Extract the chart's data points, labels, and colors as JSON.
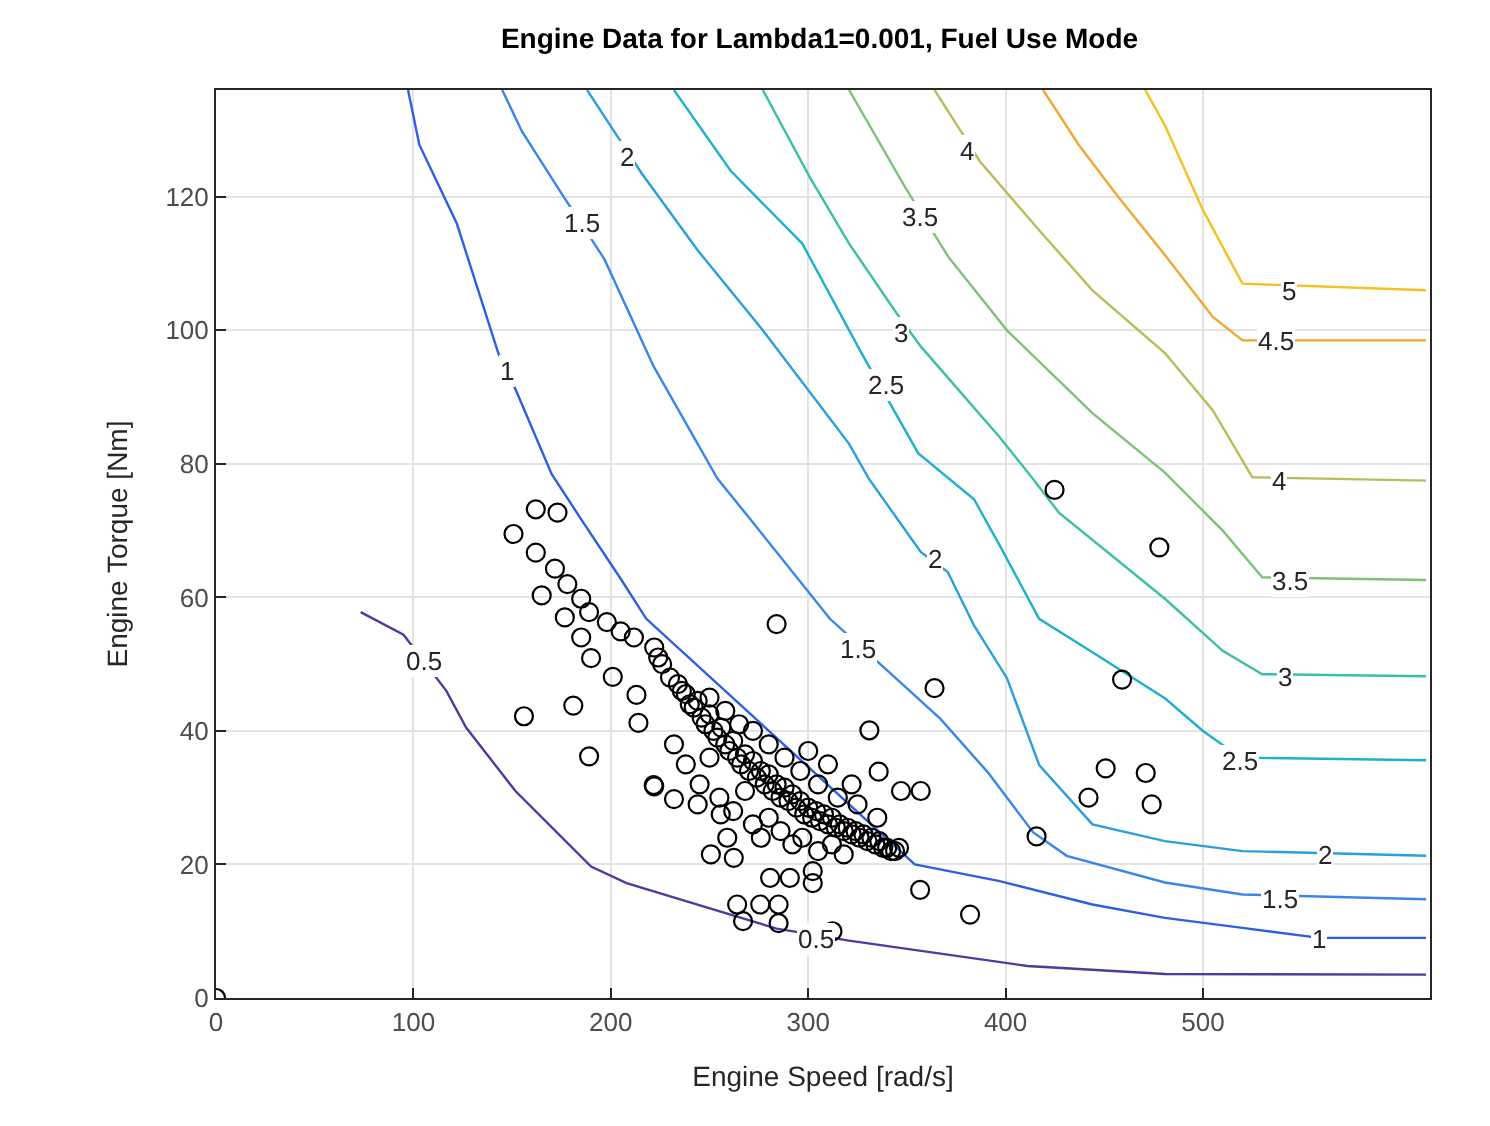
{
  "chart_data": {
    "type": "scatter",
    "title": "Engine Data for Lambda1=0.001, Fuel Use Mode",
    "xlabel": "Engine Speed [rad/s]",
    "ylabel": "Engine Torque [Nm]",
    "xlim": [
      0,
      615
    ],
    "ylim": [
      0,
      136
    ],
    "xticks": [
      0,
      100,
      200,
      300,
      400,
      500
    ],
    "yticks": [
      0,
      20,
      40,
      60,
      80,
      100,
      120
    ],
    "grid": true,
    "series": [
      {
        "type": "line",
        "color": "#4b3c9e",
        "x": [
          73.3,
          95,
          116.7,
          126.7,
          151.7,
          190,
          208,
          284,
          320.7,
          411,
          480.7,
          613
        ],
        "values": [
          57.8,
          54.4,
          46,
          40.5,
          31,
          19.7,
          17.2,
          10.4,
          8.6,
          4.8,
          3.6,
          3.5
        ]
      },
      {
        "type": "line",
        "color": "#2f5fe0",
        "x": [
          97.3,
          103,
          122,
          143,
          152,
          170,
          185,
          205,
          218,
          354,
          397,
          444,
          480.7,
          520,
          559,
          613
        ],
        "values": [
          136,
          127.8,
          116,
          96.6,
          91,
          78.5,
          71.7,
          62.8,
          56.8,
          20,
          17.5,
          14,
          12,
          10.5,
          9,
          9
        ]
      },
      {
        "type": "line",
        "color": "#3a86e8",
        "x": [
          145,
          155,
          175,
          196.7,
          221.7,
          254,
          270.7,
          311,
          341,
          367,
          391,
          414,
          431,
          480.7,
          520,
          613
        ],
        "values": [
          136,
          129.8,
          120.5,
          110.7,
          94.6,
          77.8,
          71.7,
          56.8,
          48.8,
          41.8,
          33.8,
          24.8,
          21.3,
          17.3,
          15.5,
          14.8
        ]
      },
      {
        "type": "line",
        "color": "#2a9fdc",
        "x": [
          188,
          201.7,
          215.7,
          244,
          277,
          320.7,
          330.7,
          357,
          370.7,
          384,
          400.7,
          417,
          444,
          480.7,
          520,
          613
        ],
        "values": [
          136,
          129.8,
          123.5,
          112,
          100,
          83,
          77.8,
          66.8,
          63.8,
          55.8,
          47.9,
          34.9,
          26,
          23.5,
          22,
          21.3
        ]
      },
      {
        "type": "line",
        "color": "#1fb0cc",
        "x": [
          232,
          260.7,
          297,
          327,
          355.7,
          384,
          397,
          417,
          444,
          480.7,
          500,
          519,
          613
        ],
        "values": [
          136,
          123.9,
          113,
          96.6,
          81.6,
          74.7,
          67.8,
          56.8,
          51.8,
          44.9,
          40,
          36,
          35.6
        ]
      },
      {
        "type": "line",
        "color": "#3cbfa4",
        "x": [
          277,
          300.7,
          320.7,
          344,
          357,
          397,
          414,
          427,
          480.7,
          510,
          530,
          613
        ],
        "values": [
          136,
          123,
          113,
          102.9,
          97.6,
          84,
          77.7,
          72.7,
          59.8,
          52,
          48.5,
          48.2
        ]
      },
      {
        "type": "line",
        "color": "#7ec27a",
        "x": [
          320.7,
          349,
          371,
          400.7,
          444,
          480.7,
          510,
          530,
          613
        ],
        "values": [
          136,
          121.5,
          111,
          100,
          87.6,
          78.7,
          70,
          63,
          62.6
        ]
      },
      {
        "type": "line",
        "color": "#b9bc5a",
        "x": [
          364,
          375.7,
          387,
          417,
          444,
          480.7,
          505,
          525,
          613
        ],
        "values": [
          136,
          130.6,
          125.3,
          115,
          106,
          96.6,
          88,
          78,
          77.5
        ]
      },
      {
        "type": "line",
        "color": "#f0a830",
        "x": [
          419,
          437,
          457,
          480.7,
          505,
          520,
          613
        ],
        "values": [
          136,
          127.8,
          120,
          111.3,
          102,
          98.5,
          98.5
        ]
      },
      {
        "type": "line",
        "color": "#f5c020",
        "x": [
          470.7,
          480.7,
          500,
          520,
          613
        ],
        "values": [
          136,
          130.7,
          118,
          107,
          106
        ]
      },
      {
        "color": "#000000",
        "marker": "circle",
        "x": [
          0,
          150.7,
          162,
          173,
          162,
          171.7,
          178,
          165,
          185,
          176.7,
          189,
          198,
          205,
          211.7,
          185,
          190,
          201,
          213,
          181,
          156,
          189,
          214,
          221.7,
          284,
          364,
          331,
          335.7,
          357,
          347,
          222,
          232,
          415.7,
          356.7,
          382,
          450.7,
          442,
          471,
          474,
          459,
          424.8,
          477.9,
          264,
          267,
          275.7,
          285,
          285,
          280.7,
          290.7,
          302.3,
          302.3,
          312.3,
          250.7,
          262.3,
          259,
          244,
          255.7,
          222,
          224,
          226,
          230,
          234,
          236,
          238,
          240,
          242,
          244,
          246,
          248,
          250,
          252,
          254,
          256,
          258,
          260,
          262,
          264,
          266,
          268,
          270,
          272,
          274,
          276,
          278,
          280,
          282,
          284,
          286,
          288,
          290,
          292,
          294,
          296,
          298,
          300,
          302,
          304,
          306,
          308,
          310,
          312,
          314,
          316,
          318,
          320,
          322,
          324,
          326,
          328,
          330,
          332,
          334,
          336,
          338,
          340,
          342,
          344,
          346,
          232,
          238,
          245,
          250,
          255,
          262,
          268,
          272,
          276,
          280,
          286,
          292,
          297,
          305,
          312,
          318,
          250,
          258,
          265,
          272,
          280,
          288,
          296,
          305,
          315,
          325,
          335,
          322,
          310,
          300
        ],
        "values": [
          0,
          69.5,
          73.2,
          72.7,
          66.7,
          64.3,
          62,
          60.3,
          59.8,
          57,
          57.8,
          56.3,
          54.9,
          54,
          54,
          50.9,
          48.1,
          45.4,
          43.8,
          42.2,
          36.2,
          41.2,
          31.9,
          56,
          46.4,
          40.1,
          33.9,
          31,
          31,
          31.7,
          29.8,
          24.2,
          16.2,
          12.5,
          34.4,
          30,
          33.7,
          29,
          47.7,
          76.1,
          67.5,
          14,
          11.5,
          14,
          14,
          11.2,
          18,
          18,
          19,
          17.2,
          10,
          21.5,
          21,
          24,
          29,
          27.5,
          52.5,
          51,
          50,
          48,
          47,
          46,
          45.5,
          44,
          43.5,
          44.5,
          42,
          41,
          42.5,
          40,
          39,
          40.5,
          38,
          37,
          38.5,
          36,
          35,
          36.5,
          34,
          35.5,
          33,
          34,
          32,
          33.5,
          31,
          32,
          30,
          31.5,
          29.5,
          30.5,
          28.5,
          29.5,
          27.5,
          28.5,
          27,
          28,
          26.5,
          27.5,
          26,
          27,
          25.5,
          26,
          25,
          25.5,
          24.5,
          25,
          24,
          24.5,
          23.5,
          24,
          23,
          23.5,
          22.5,
          22.5,
          22,
          22,
          22.5,
          38,
          35,
          32,
          36,
          30,
          28,
          31,
          26,
          24,
          27,
          25,
          23,
          24,
          22,
          23,
          21.5,
          45,
          43,
          41,
          40,
          38,
          36,
          34,
          32,
          30,
          29,
          27,
          32,
          35,
          37
        ]
      }
    ],
    "annotations": [
      {
        "text": "0.5",
        "x": 105,
        "y": 50.4
      },
      {
        "text": "0.5",
        "x": 304,
        "y": 8.9
      },
      {
        "text": "1",
        "x": 147,
        "y": 94
      },
      {
        "text": "1",
        "x": 559,
        "y": 8.7
      },
      {
        "text": "1.5",
        "x": 185,
        "y": 116
      },
      {
        "text": "1.5",
        "x": 325.7,
        "y": 52.3
      },
      {
        "text": "1.5",
        "x": 539,
        "y": 14.7
      },
      {
        "text": "2",
        "x": 208,
        "y": 126
      },
      {
        "text": "2",
        "x": 364,
        "y": 65.8
      },
      {
        "text": "2",
        "x": 562,
        "y": 21.3
      },
      {
        "text": "2.5",
        "x": 339,
        "y": 91.7
      },
      {
        "text": "2.5",
        "x": 519,
        "y": 35.6
      },
      {
        "text": "3",
        "x": 347,
        "y": 99.5
      },
      {
        "text": "3",
        "x": 542,
        "y": 48.2
      },
      {
        "text": "3.5",
        "x": 357,
        "y": 117
      },
      {
        "text": "3.5",
        "x": 544,
        "y": 62.6
      },
      {
        "text": "4",
        "x": 380,
        "y": 127
      },
      {
        "text": "4",
        "x": 539,
        "y": 77.5
      },
      {
        "text": "4.5",
        "x": 537,
        "y": 98.5
      },
      {
        "text": "5",
        "x": 544,
        "y": 106
      }
    ]
  }
}
